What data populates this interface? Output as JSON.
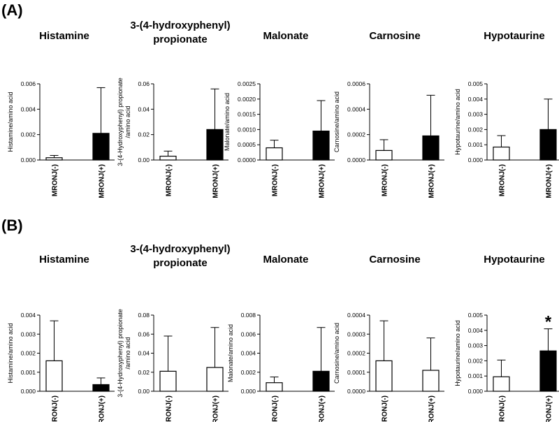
{
  "figure": {
    "panels": [
      "(A)",
      "(B)"
    ]
  },
  "chart_data": [
    {
      "panel": "A",
      "type": "bar",
      "title": [
        "Histamine"
      ],
      "ylabel": [
        "Histamine/amino acid"
      ],
      "categories": [
        "MRONJ(-)",
        "MRONJ(+)"
      ],
      "values": [
        0.00018,
        0.0021
      ],
      "errors": [
        0.00018,
        0.0036
      ],
      "ylim": [
        0,
        0.006
      ],
      "ticks": [
        "0.000",
        "0.002",
        "0.004",
        "0.006"
      ],
      "colors": [
        "#ffffff",
        "#000000"
      ],
      "significance": [
        "",
        ""
      ]
    },
    {
      "panel": "A",
      "type": "bar",
      "title": [
        "3-(4-hydroxyphenyl)",
        "propionate"
      ],
      "ylabel": [
        "3-(4-Hydroxyphenyl) propionate",
        "/amino acid"
      ],
      "categories": [
        "MRONJ(-)",
        "MRONJ(+)"
      ],
      "values": [
        0.003,
        0.024
      ],
      "errors": [
        0.004,
        0.032
      ],
      "ylim": [
        0,
        0.06
      ],
      "ticks": [
        "0.00",
        "0.02",
        "0.04",
        "0.06"
      ],
      "colors": [
        "#ffffff",
        "#000000"
      ],
      "significance": [
        "",
        ""
      ]
    },
    {
      "panel": "A",
      "type": "bar",
      "title": [
        "Malonate"
      ],
      "ylabel": [
        "Malonate/amino acid"
      ],
      "categories": [
        "MRONJ(-)",
        "MRONJ(+)"
      ],
      "values": [
        0.0004,
        0.00095
      ],
      "errors": [
        0.00025,
        0.001
      ],
      "ylim": [
        0,
        0.0025
      ],
      "ticks": [
        "0.0000",
        "0.0005",
        "0.0010",
        "0.0015",
        "0.0020",
        "0.0025"
      ],
      "colors": [
        "#ffffff",
        "#000000"
      ],
      "significance": [
        "",
        ""
      ]
    },
    {
      "panel": "A",
      "type": "bar",
      "title": [
        "Carnosine"
      ],
      "ylabel": [
        "Carnosine/amino acid"
      ],
      "categories": [
        "MRONJ(-)",
        "MRONJ(+)"
      ],
      "values": [
        7.5e-05,
        0.00019
      ],
      "errors": [
        8.5e-05,
        0.00032
      ],
      "ylim": [
        0,
        0.0006
      ],
      "ticks": [
        "0.0000",
        "0.0002",
        "0.0004",
        "0.0006"
      ],
      "colors": [
        "#ffffff",
        "#000000"
      ],
      "significance": [
        "",
        ""
      ]
    },
    {
      "panel": "A",
      "type": "bar",
      "title": [
        "Hypotaurine"
      ],
      "ylabel": [
        "Hypotaurine/amino acid"
      ],
      "categories": [
        "MRONJ(-)",
        "MRONJ(+)"
      ],
      "values": [
        0.00085,
        0.002
      ],
      "errors": [
        0.00075,
        0.002
      ],
      "ylim": [
        0,
        0.005
      ],
      "ticks": [
        "0.000",
        "0.001",
        "0.002",
        "0.003",
        "0.004",
        "0.005"
      ],
      "colors": [
        "#ffffff",
        "#000000"
      ],
      "significance": [
        "",
        ""
      ]
    },
    {
      "panel": "B",
      "type": "bar",
      "title": [
        "Histamine"
      ],
      "ylabel": [
        "Histamine/amino acid"
      ],
      "categories": [
        "MRONJ(-)",
        "MRONJ(+)"
      ],
      "values": [
        0.0016,
        0.00035
      ],
      "errors": [
        0.0021,
        0.00035
      ],
      "ylim": [
        0,
        0.004
      ],
      "ticks": [
        "0.000",
        "0.001",
        "0.002",
        "0.003",
        "0.004"
      ],
      "colors": [
        "#ffffff",
        "#000000"
      ],
      "significance": [
        "",
        ""
      ]
    },
    {
      "panel": "B",
      "type": "bar",
      "title": [
        "3-(4-hydroxyphenyl)",
        "propionate"
      ],
      "ylabel": [
        "3-(4-Hydroxyphenyl) propionate",
        "/amino acid"
      ],
      "categories": [
        "MRONJ(-)",
        "MRONJ(+)"
      ],
      "values": [
        0.021,
        0.025
      ],
      "errors": [
        0.037,
        0.042
      ],
      "ylim": [
        0,
        0.08
      ],
      "ticks": [
        "0.00",
        "0.02",
        "0.04",
        "0.06",
        "0.08"
      ],
      "colors": [
        "#ffffff",
        "#ffffff"
      ],
      "significance": [
        "",
        ""
      ]
    },
    {
      "panel": "B",
      "type": "bar",
      "title": [
        "Malonate"
      ],
      "ylabel": [
        "Malonate/amino acid"
      ],
      "categories": [
        "MRONJ(-)",
        "MRONJ(+)"
      ],
      "values": [
        0.0009,
        0.0021
      ],
      "errors": [
        0.0006,
        0.0046
      ],
      "ylim": [
        0,
        0.008
      ],
      "ticks": [
        "0.000",
        "0.002",
        "0.004",
        "0.006",
        "0.008"
      ],
      "colors": [
        "#ffffff",
        "#000000"
      ],
      "significance": [
        "",
        ""
      ]
    },
    {
      "panel": "B",
      "type": "bar",
      "title": [
        "Carnosine"
      ],
      "ylabel": [
        "Carnosine/amino acid"
      ],
      "categories": [
        "MRONJ(-)",
        "MRONJ(+)"
      ],
      "values": [
        0.00016,
        0.00011
      ],
      "errors": [
        0.00021,
        0.00017
      ],
      "ylim": [
        0,
        0.0004
      ],
      "ticks": [
        "0.0000",
        "0.0001",
        "0.0002",
        "0.0003",
        "0.0004"
      ],
      "colors": [
        "#ffffff",
        "#ffffff"
      ],
      "significance": [
        "",
        ""
      ]
    },
    {
      "panel": "B",
      "type": "bar",
      "title": [
        "Hypotaurine"
      ],
      "ylabel": [
        "Hypotaurine/amino acid"
      ],
      "categories": [
        "MRONJ(-)",
        "MRONJ(+)"
      ],
      "values": [
        0.00095,
        0.00265
      ],
      "errors": [
        0.0011,
        0.00145
      ],
      "ylim": [
        0,
        0.005
      ],
      "ticks": [
        "0.000",
        "0.001",
        "0.002",
        "0.003",
        "0.004",
        "0.005"
      ],
      "colors": [
        "#ffffff",
        "#000000"
      ],
      "significance": [
        "",
        "*"
      ]
    }
  ]
}
